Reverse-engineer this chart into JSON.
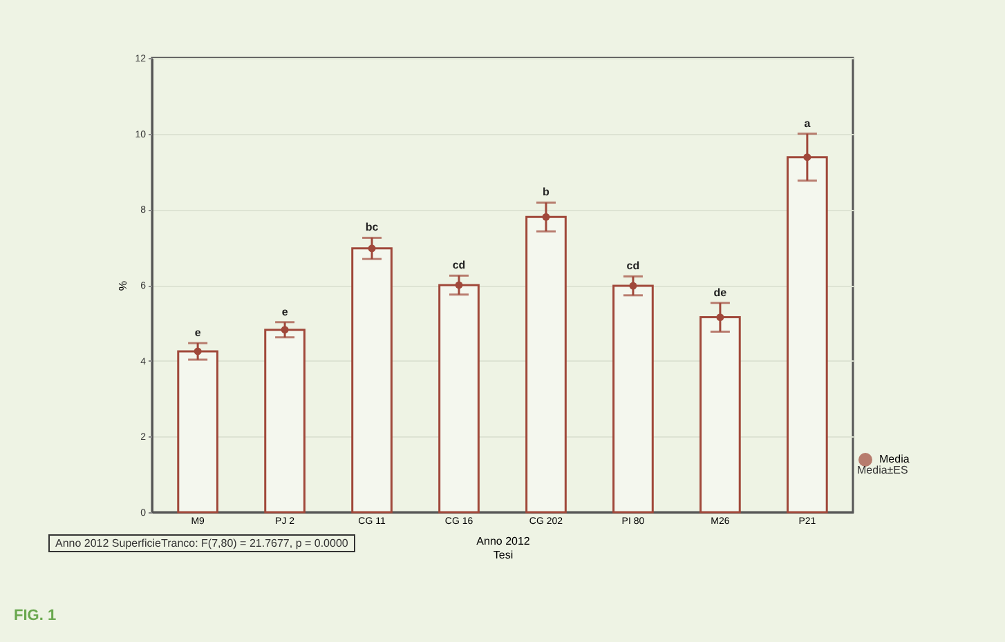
{
  "chart_data": {
    "type": "bar",
    "xlabel": "Anno 2012\nTesi",
    "ylabel": "%",
    "categories": [
      "M9",
      "PJ 2",
      "CG 11",
      "CG 16",
      "CG 202",
      "PI 80",
      "M26",
      "P21"
    ],
    "series": [
      {
        "type": "bar",
        "color": "#a0483a",
        "values": [
          4.25,
          4.82,
          6.97,
          6.0,
          7.8,
          5.98,
          5.15,
          9.38
        ]
      },
      {
        "type": "scatter",
        "name": "Media",
        "color": "#a0483a",
        "values": [
          4.25,
          4.82,
          6.97,
          6.0,
          7.8,
          5.98,
          5.15,
          9.38
        ],
        "errors": [
          0.22,
          0.2,
          0.28,
          0.25,
          0.38,
          0.25,
          0.38,
          0.62
        ]
      }
    ],
    "ylim": [
      0,
      12
    ],
    "yticks": [
      0,
      2,
      4,
      6,
      8,
      10,
      12
    ],
    "grid": "y",
    "marker": "circle",
    "legend": "right",
    "annotations": [
      {
        "text": "e",
        "x": "M9",
        "y": 4.47
      },
      {
        "text": "e",
        "x": "PJ 2",
        "y": 5.02
      },
      {
        "text": "bc",
        "x": "CG 11",
        "y": 7.25
      },
      {
        "text": "cd",
        "x": "CG 16",
        "y": 6.25
      },
      {
        "text": "b",
        "x": "CG 202",
        "y": 8.18
      },
      {
        "text": "cd",
        "x": "PI 80",
        "y": 6.23
      },
      {
        "text": "de",
        "x": "M26",
        "y": 5.53
      },
      {
        "text": "a",
        "x": "P21",
        "y": 10.0
      },
      "Media±ES",
      "Anno 2012 SuperficieTranco: F(7,80) = 21.7677, p = 0.0000",
      "FIG. 1"
    ]
  }
}
